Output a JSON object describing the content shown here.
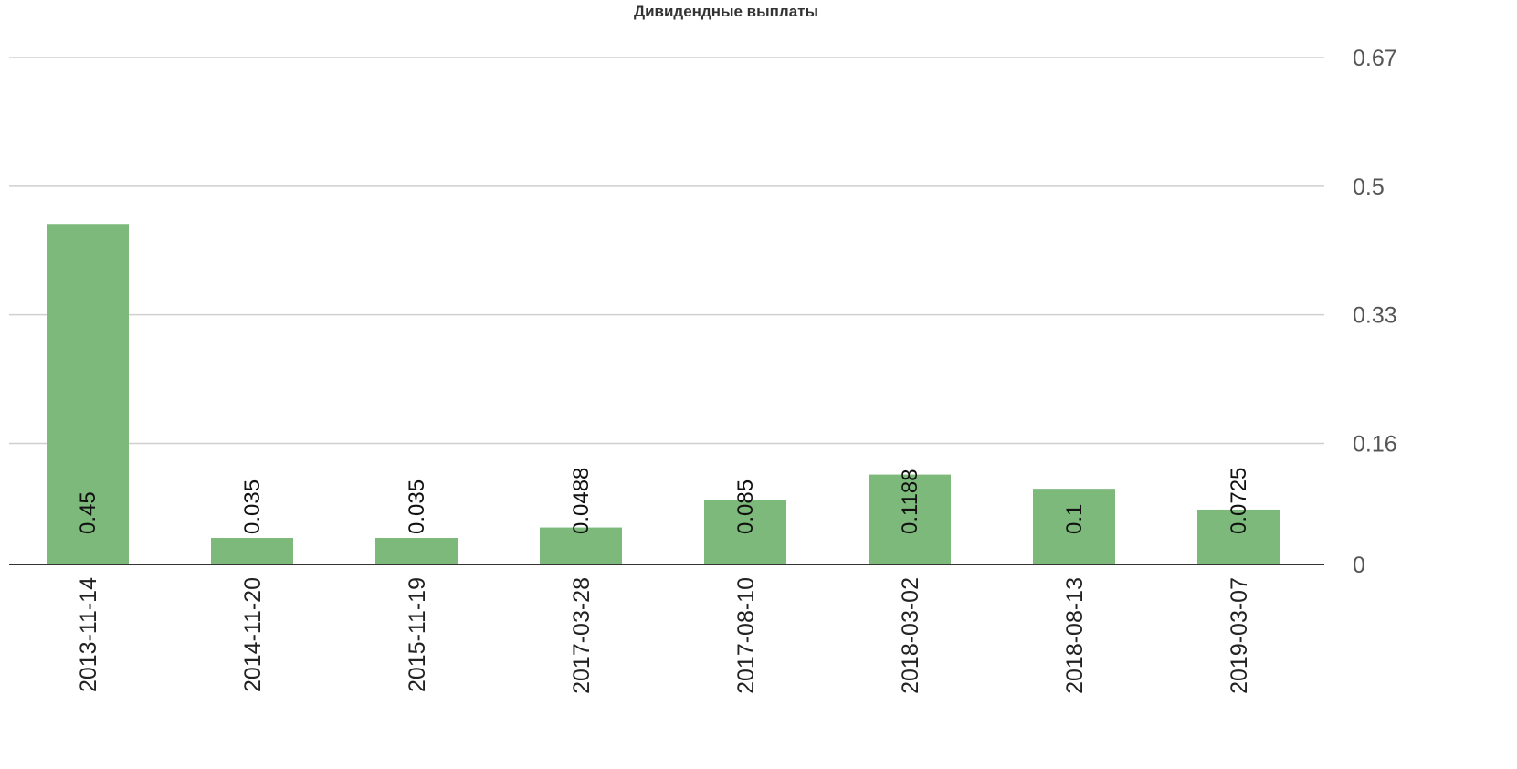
{
  "chart_data": {
    "type": "bar",
    "title": "Дивидендные выплаты",
    "xlabel": "",
    "ylabel": "",
    "categories": [
      "2013-11-14",
      "2014-11-20",
      "2015-11-19",
      "2017-03-28",
      "2017-08-10",
      "2018-03-02",
      "2018-08-13",
      "2019-03-07"
    ],
    "values": [
      0.45,
      0.035,
      0.035,
      0.0488,
      0.085,
      0.1188,
      0.1,
      0.0725
    ],
    "data_labels": [
      "0.45",
      "0.035",
      "0.035",
      "0.0488",
      "0.085",
      "0.1188",
      "0.1",
      "0.0725"
    ],
    "y_ticks": [
      0,
      0.16,
      0.33,
      0.5,
      0.67
    ],
    "y_tick_labels": [
      "0",
      "0.16",
      "0.33",
      "0.5",
      "0.67"
    ],
    "ylim": [
      0,
      0.67
    ],
    "y_axis_position": "right",
    "grid": true,
    "legend": "none",
    "colors": {
      "bar": "#7cb97a",
      "grid": "#cfcfcf",
      "baseline": "#333333"
    }
  }
}
